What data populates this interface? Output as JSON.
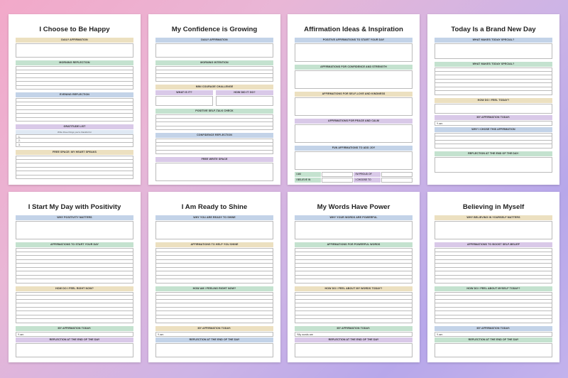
{
  "pages": [
    {
      "title": "I Choose to Be Happy",
      "sections": [
        {
          "label": "Daily Affirmation",
          "color": "tan"
        },
        {
          "label": "Morning Reflection",
          "color": "green"
        },
        {
          "label": "Evening Reflection",
          "color": "blue"
        },
        {
          "label": "Gratitude List",
          "color": "purple"
        },
        {
          "label": "Write three things you're thankful for",
          "color": "blue"
        },
        {
          "label": "Free Space: My Heart Speaks",
          "color": "tan"
        }
      ],
      "numbers": [
        "1.",
        "2.",
        "3."
      ]
    },
    {
      "title": "My Confidence is Growing",
      "sections": [
        {
          "label": "Daily Affirmation",
          "color": "blue"
        },
        {
          "label": "Morning Intention",
          "color": "green"
        },
        {
          "label": "Mini Courage Challenge",
          "color": "tan"
        },
        {
          "label": "What is it?",
          "color": "purple"
        },
        {
          "label": "How did it go?",
          "color": "purple"
        },
        {
          "label": "Positive Self-Talk Check",
          "color": "green"
        },
        {
          "label": "Confidence Reflection",
          "color": "blue"
        },
        {
          "label": "Free Write Space",
          "color": "purple"
        }
      ]
    },
    {
      "title": "Affirmation Ideas & Inspiration",
      "sections": [
        {
          "label": "Positive Affirmations to Start Your Day",
          "color": "blue"
        },
        {
          "label": "Affirmations for Confidence and Strength",
          "color": "green"
        },
        {
          "label": "Affirmations for Self-Love and Kindness",
          "color": "tan"
        },
        {
          "label": "Affirmations for Peace and Calm",
          "color": "purple"
        },
        {
          "label": "Fun Affirmations to Add Joy",
          "color": "blue"
        }
      ],
      "prompts": [
        "I AM",
        "I'M PROUD OF",
        "I BELIEVE IN",
        "I CHOOSE TO"
      ]
    },
    {
      "title": "Today Is a Brand New Day",
      "sections": [
        {
          "label": "What Makes Today Special?",
          "color": "blue"
        },
        {
          "label": "What Makes Today Special?",
          "color": "green"
        },
        {
          "label": "How Do I Feel Today?",
          "color": "tan"
        },
        {
          "label": "My Affirmation Today:",
          "color": "purple"
        },
        {
          "label": "Why I Chose This Affirmation",
          "color": "blue"
        },
        {
          "label": "Reflection at the End of the Day:",
          "color": "green"
        }
      ],
      "affirm_prefix": "*I am"
    },
    {
      "title": "I Start My Day with Positivity",
      "sections": [
        {
          "label": "Why Positivity Matters",
          "color": "blue"
        },
        {
          "label": "Affirmations to Start Your Day",
          "color": "green"
        },
        {
          "label": "How Do I Feel Right Now?",
          "color": "tan"
        },
        {
          "label": "My Affirmation Today:",
          "color": "green"
        },
        {
          "label": "Reflection at the End of the Day",
          "color": "purple"
        }
      ],
      "affirm_prefix": "*I am"
    },
    {
      "title": "I Am Ready to Shine",
      "sections": [
        {
          "label": "Why You Are Ready to Shine",
          "color": "blue"
        },
        {
          "label": "Affirmations to Help You Shine",
          "color": "tan"
        },
        {
          "label": "How Am I Feeling Right Now?",
          "color": "green"
        },
        {
          "label": "My Affirmation Today:",
          "color": "tan"
        },
        {
          "label": "Reflection at the End of the Day",
          "color": "blue"
        }
      ],
      "affirm_prefix": "*I am"
    },
    {
      "title": "My Words Have Power",
      "sections": [
        {
          "label": "Why Your Words Are Powerful",
          "color": "blue"
        },
        {
          "label": "Affirmations for Powerful Words",
          "color": "green"
        },
        {
          "label": "How Do I Feel About My Words Today?",
          "color": "tan"
        },
        {
          "label": "My Affirmation Today:",
          "color": "green"
        },
        {
          "label": "Reflection at the End of the Day",
          "color": "purple"
        }
      ],
      "affirm_prefix": "*My words are"
    },
    {
      "title": "Believing in Myself",
      "sections": [
        {
          "label": "Why Believing in Yourself Matters",
          "color": "tan"
        },
        {
          "label": "Affirmations to Boost Self-Belief",
          "color": "purple"
        },
        {
          "label": "How Do I Feel About Myself Today?",
          "color": "green"
        },
        {
          "label": "My Affirmation Today:",
          "color": "blue"
        },
        {
          "label": "Reflection at the End of the Day",
          "color": "green"
        }
      ],
      "affirm_prefix": "*I am"
    }
  ]
}
